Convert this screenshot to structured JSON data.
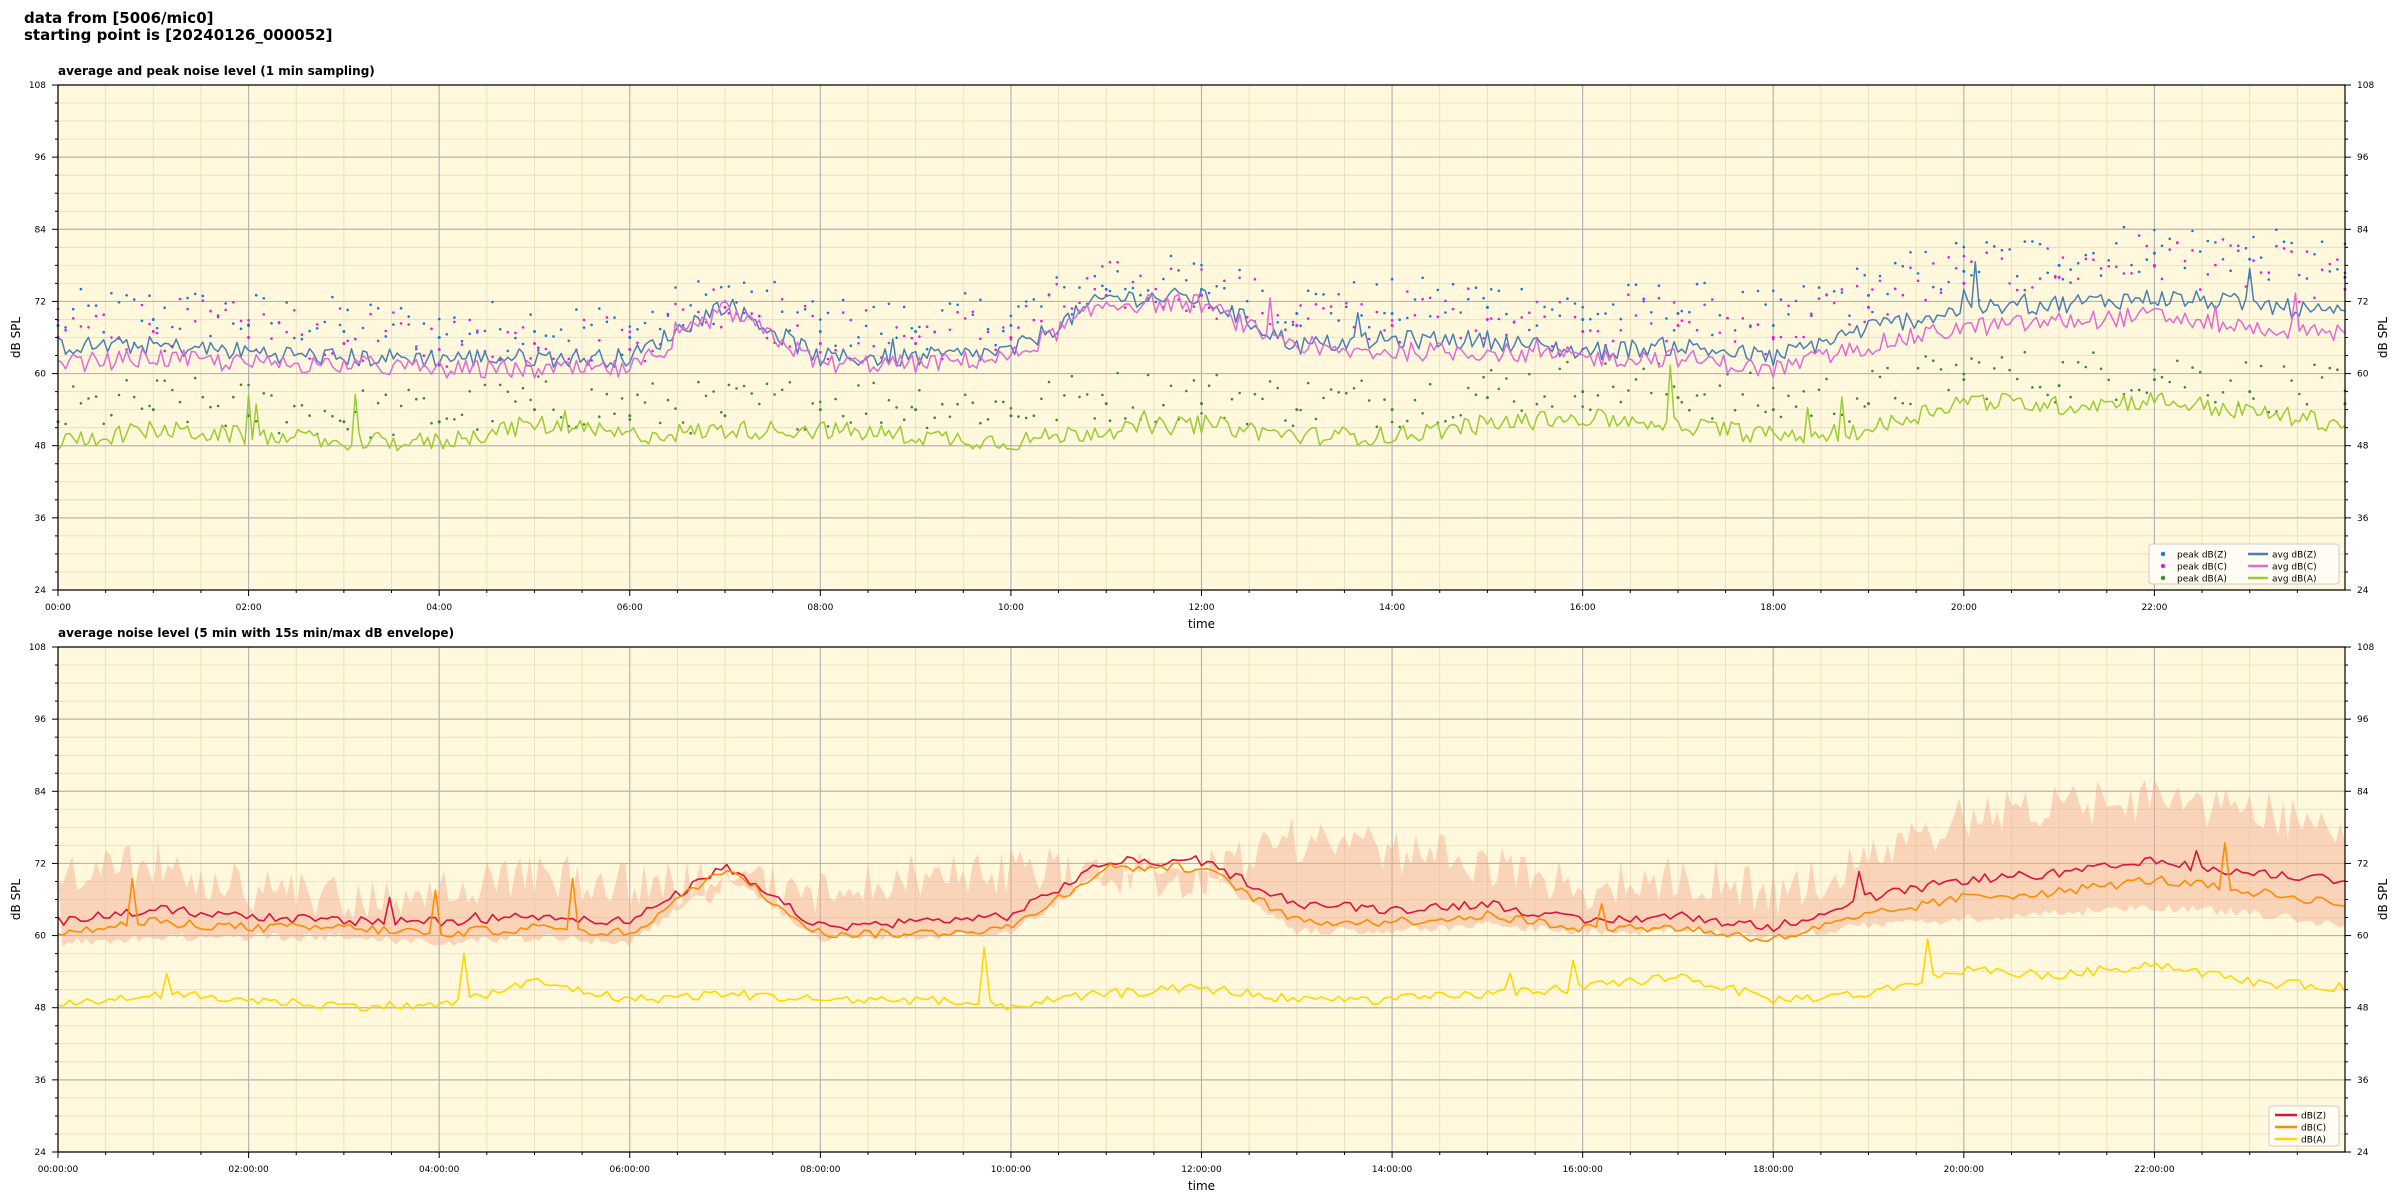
{
  "header": {
    "line1": "data from [5006/mic0]",
    "line2": "starting point is [20240126_000052]"
  },
  "colors": {
    "background": "#fff8dc",
    "grid": "#b5b5b5",
    "peak_z": "#1f77d4",
    "peak_c": "#e01ee0",
    "peak_a": "#3a8a3a",
    "avg_z": "#4a7fb5",
    "avg_c": "#e06ad6",
    "avg_a": "#9acd32",
    "env_z": "#dc143c",
    "env_c": "#ff8c00",
    "env_a": "#ffd700",
    "envelope_fill": "#f4a98c"
  },
  "chart_data": [
    {
      "type": "line",
      "title": "average and peak noise level (1 min sampling)",
      "xlabel": "time",
      "ylabel": "dB SPL",
      "ylim": [
        24,
        108
      ],
      "yticks": [
        "24",
        "36",
        "48",
        "60",
        "72",
        "84",
        "96",
        "108"
      ],
      "xticks": [
        "00:00",
        "02:00",
        "04:00",
        "06:00",
        "08:00",
        "10:00",
        "12:00",
        "14:00",
        "16:00",
        "18:00",
        "20:00",
        "22:00"
      ],
      "grid": true,
      "legend_position": "lower-right",
      "legend": [
        "peak dB(Z)",
        "peak dB(C)",
        "peak dB(A)",
        "avg dB(Z)",
        "avg dB(C)",
        "avg dB(A)"
      ],
      "x_hours": [
        0,
        1,
        2,
        3,
        4,
        5,
        6,
        7,
        8,
        9,
        10,
        11,
        12,
        13,
        14,
        15,
        16,
        17,
        18,
        19,
        20,
        21,
        22,
        23,
        24
      ],
      "series": [
        {
          "name": "avg dB(Z)",
          "style": "line",
          "values": [
            64,
            64,
            63,
            62,
            62,
            62,
            62,
            71,
            62,
            62,
            63,
            72,
            72,
            64,
            65,
            65,
            63,
            64,
            62,
            67,
            70,
            71,
            72,
            71,
            69
          ]
        },
        {
          "name": "avg dB(C)",
          "style": "line",
          "values": [
            61,
            62,
            61,
            61,
            60,
            60,
            60,
            70,
            61,
            61,
            62,
            71,
            71,
            63,
            63,
            63,
            62,
            62,
            60,
            64,
            67,
            68,
            69,
            67,
            66
          ]
        },
        {
          "name": "avg dB(A)",
          "style": "line",
          "values": [
            48,
            50,
            49,
            48,
            48,
            51,
            49,
            50,
            50,
            49,
            48,
            50,
            51,
            49,
            49,
            51,
            52,
            51,
            49,
            50,
            55,
            54,
            55,
            53,
            51
          ]
        },
        {
          "name": "peak dB(Z)",
          "style": "dots",
          "values": [
            68,
            69,
            68,
            67,
            66,
            67,
            66,
            72,
            67,
            67,
            68,
            74,
            74,
            70,
            70,
            71,
            69,
            70,
            68,
            73,
            77,
            78,
            80,
            79,
            76
          ]
        },
        {
          "name": "peak dB(C)",
          "style": "dots",
          "values": [
            66,
            67,
            66,
            65,
            64,
            65,
            64,
            71,
            65,
            65,
            66,
            73,
            73,
            68,
            68,
            69,
            67,
            68,
            66,
            71,
            75,
            76,
            78,
            76,
            74
          ]
        },
        {
          "name": "peak dB(A)",
          "style": "dots",
          "values": [
            52,
            54,
            53,
            52,
            52,
            54,
            53,
            53,
            54,
            54,
            53,
            55,
            55,
            54,
            54,
            56,
            57,
            56,
            54,
            55,
            59,
            58,
            59,
            57,
            55
          ]
        }
      ]
    },
    {
      "type": "area",
      "title": "average noise level (5 min with 15s min/max dB envelope)",
      "xlabel": "time",
      "ylabel": "dB SPL",
      "ylim": [
        24,
        108
      ],
      "yticks": [
        "24",
        "36",
        "48",
        "60",
        "72",
        "84",
        "96",
        "108"
      ],
      "xticks": [
        "00:00:00",
        "02:00:00",
        "04:00:00",
        "06:00:00",
        "08:00:00",
        "10:00:00",
        "12:00:00",
        "14:00:00",
        "16:00:00",
        "18:00:00",
        "20:00:00",
        "22:00:00"
      ],
      "grid": true,
      "legend_position": "lower-right",
      "legend": [
        "dB(Z)",
        "dB(C)",
        "dB(A)"
      ],
      "x_hours": [
        0,
        1,
        2,
        3,
        4,
        5,
        6,
        7,
        8,
        9,
        10,
        11,
        12,
        13,
        14,
        15,
        16,
        17,
        18,
        19,
        20,
        21,
        22,
        23,
        24
      ],
      "envelope": {
        "min": [
          58,
          59,
          59,
          59,
          58,
          59,
          58,
          69,
          59,
          59,
          60,
          70,
          70,
          60,
          60,
          61,
          60,
          60,
          59,
          61,
          62,
          63,
          64,
          63,
          61
        ],
        "max": [
          74,
          76,
          72,
          70,
          71,
          74,
          72,
          73,
          71,
          74,
          75,
          74,
          74,
          80,
          78,
          76,
          72,
          74,
          71,
          76,
          84,
          85,
          87,
          85,
          82
        ]
      },
      "series": [
        {
          "name": "dB(Z)",
          "values": [
            62,
            64,
            63,
            62,
            62,
            63,
            62,
            71,
            61,
            62,
            63,
            72,
            72,
            65,
            64,
            65,
            62,
            63,
            61,
            66,
            69,
            70,
            72,
            70,
            69
          ]
        },
        {
          "name": "dB(C)",
          "values": [
            60,
            62,
            61,
            61,
            60,
            61,
            60,
            71,
            60,
            60,
            61,
            71,
            71,
            62,
            62,
            63,
            61,
            61,
            59,
            63,
            66,
            67,
            69,
            67,
            65
          ]
        },
        {
          "name": "dB(A)",
          "values": [
            48,
            50,
            49,
            48,
            48,
            52,
            49,
            50,
            49,
            49,
            48,
            50,
            51,
            49,
            49,
            50,
            51,
            53,
            49,
            50,
            54,
            53,
            55,
            52,
            51
          ]
        }
      ]
    }
  ]
}
